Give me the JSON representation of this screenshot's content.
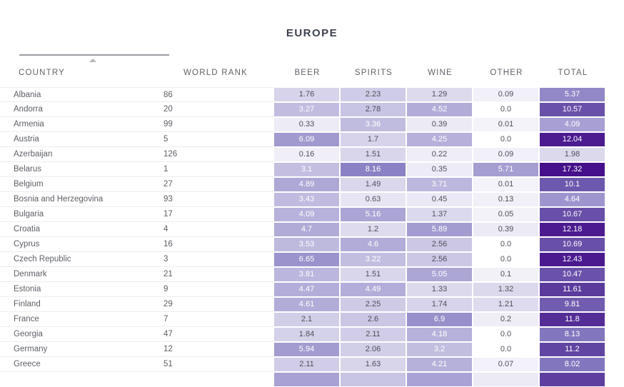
{
  "title": "EUROPE",
  "columns": {
    "country": "COUNTRY",
    "world_rank": "WORLD RANK",
    "beer": "BEER",
    "spirits": "SPIRITS",
    "wine": "WINE",
    "other": "OTHER",
    "total": "TOTAL"
  },
  "sort": {
    "column": "country",
    "direction": "ascending"
  },
  "rows": [
    {
      "country": "Albania",
      "world_rank": "86",
      "beer": "1.76",
      "spirits": "2.23",
      "wine": "1.29",
      "other": "0.09",
      "total": "5.37"
    },
    {
      "country": "Andorra",
      "world_rank": "20",
      "beer": "3.27",
      "spirits": "2.78",
      "wine": "4.52",
      "other": "0.0",
      "total": "10.57"
    },
    {
      "country": "Armenia",
      "world_rank": "99",
      "beer": "0.33",
      "spirits": "3.36",
      "wine": "0.39",
      "other": "0.01",
      "total": "4.09"
    },
    {
      "country": "Austria",
      "world_rank": "5",
      "beer": "6.09",
      "spirits": "1.7",
      "wine": "4.25",
      "other": "0.0",
      "total": "12.04"
    },
    {
      "country": "Azerbaijan",
      "world_rank": "126",
      "beer": "0.16",
      "spirits": "1.51",
      "wine": "0.22",
      "other": "0.09",
      "total": "1.98"
    },
    {
      "country": "Belarus",
      "world_rank": "1",
      "beer": "3.1",
      "spirits": "8.16",
      "wine": "0.35",
      "other": "5.71",
      "total": "17.32"
    },
    {
      "country": "Belgium",
      "world_rank": "27",
      "beer": "4.89",
      "spirits": "1.49",
      "wine": "3.71",
      "other": "0.01",
      "total": "10.1"
    },
    {
      "country": "Bosnia and Herzegovina",
      "world_rank": "93",
      "beer": "3.43",
      "spirits": "0.63",
      "wine": "0.45",
      "other": "0.13",
      "total": "4.64"
    },
    {
      "country": "Bulgaria",
      "world_rank": "17",
      "beer": "4.09",
      "spirits": "5.16",
      "wine": "1.37",
      "other": "0.05",
      "total": "10.67"
    },
    {
      "country": "Croatia",
      "world_rank": "4",
      "beer": "4.7",
      "spirits": "1.2",
      "wine": "5.89",
      "other": "0.39",
      "total": "12.18"
    },
    {
      "country": "Cyprus",
      "world_rank": "16",
      "beer": "3.53",
      "spirits": "4.6",
      "wine": "2.56",
      "other": "0.0",
      "total": "10.69"
    },
    {
      "country": "Czech Republic",
      "world_rank": "3",
      "beer": "6.65",
      "spirits": "3.22",
      "wine": "2.56",
      "other": "0.0",
      "total": "12.43"
    },
    {
      "country": "Denmark",
      "world_rank": "21",
      "beer": "3.81",
      "spirits": "1.51",
      "wine": "5.05",
      "other": "0.1",
      "total": "10.47"
    },
    {
      "country": "Estonia",
      "world_rank": "9",
      "beer": "4.47",
      "spirits": "4.49",
      "wine": "1.33",
      "other": "1.32",
      "total": "11.61"
    },
    {
      "country": "Finland",
      "world_rank": "29",
      "beer": "4.61",
      "spirits": "2.25",
      "wine": "1.74",
      "other": "1.21",
      "total": "9.81"
    },
    {
      "country": "France",
      "world_rank": "7",
      "beer": "2.1",
      "spirits": "2.6",
      "wine": "6.9",
      "other": "0.2",
      "total": "11.8"
    },
    {
      "country": "Georgia",
      "world_rank": "47",
      "beer": "1.84",
      "spirits": "2.11",
      "wine": "4.18",
      "other": "0.0",
      "total": "8.13"
    },
    {
      "country": "Germany",
      "world_rank": "12",
      "beer": "5.94",
      "spirits": "2.06",
      "wine": "3.2",
      "other": "0.0",
      "total": "11.2"
    },
    {
      "country": "Greece",
      "world_rank": "51",
      "beer": "2.11",
      "spirits": "1.63",
      "wine": "4.21",
      "other": "0.07",
      "total": "8.02"
    }
  ],
  "partial_row_colors": {
    "beer": "#a8a1d3",
    "spirits": "#c8c4e3",
    "wine": "#a9a2d4",
    "other": "#eceaf5",
    "total": "#5e3f9f"
  },
  "heatmap": {
    "value_scale": {
      "max": 8.16,
      "gamma": 0.8,
      "light": "#f5f4fa",
      "dark": "#8a82c4",
      "zero_color": "#ffffff",
      "white_text_min": 3.0
    },
    "total_scale": {
      "stops": [
        [
          1.98,
          "#dcd9ec"
        ],
        [
          4.1,
          "#a89fd4"
        ],
        [
          5.4,
          "#9187c7"
        ],
        [
          8.1,
          "#8276be"
        ],
        [
          10.7,
          "#684fa8"
        ],
        [
          11.61,
          "#5b3c9d"
        ],
        [
          12.04,
          "#4c1b8f"
        ],
        [
          17.32,
          "#45108a"
        ]
      ],
      "white_text_min": 4.0
    },
    "gray_text": "#50505a",
    "white_text": "#ffffff"
  }
}
